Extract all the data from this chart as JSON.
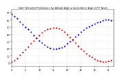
{
  "title": "Solar PV/Inverter Performance Sun Altitude Angle & Sun Incidence Angle on PV Panels",
  "background_color": "#ffffff",
  "grid_color": "#bbbbbb",
  "blue_color": "#0000dd",
  "red_color": "#cc0000",
  "ylim": [
    -5,
    75
  ],
  "xlim": [
    0,
    37
  ],
  "ytick_vals": [
    0,
    10,
    20,
    30,
    40,
    50,
    60,
    70
  ],
  "blue_x": [
    0,
    1,
    2,
    3,
    4,
    5,
    6,
    7,
    8,
    9,
    10,
    11,
    12,
    13,
    14,
    15,
    16,
    17,
    18,
    19,
    20,
    21,
    22,
    23,
    24,
    25,
    26,
    27,
    28,
    29,
    30,
    31,
    32,
    33,
    34,
    35,
    36
  ],
  "blue_y": [
    68,
    65,
    62,
    58,
    54,
    50,
    47,
    43,
    39,
    35,
    31,
    28,
    25,
    23,
    21,
    20,
    20,
    21,
    22,
    24,
    27,
    30,
    33,
    37,
    40,
    43,
    46,
    49,
    51,
    53,
    55,
    57,
    58,
    59,
    60,
    60,
    59
  ],
  "red_x": [
    0,
    1,
    2,
    3,
    4,
    5,
    6,
    7,
    8,
    9,
    10,
    11,
    12,
    13,
    14,
    15,
    16,
    17,
    18,
    19,
    20,
    21,
    22,
    23,
    24,
    25,
    26,
    27,
    28,
    29,
    30,
    31,
    32,
    33,
    34,
    35,
    36
  ],
  "red_y": [
    2,
    4,
    7,
    11,
    15,
    19,
    23,
    27,
    31,
    35,
    39,
    42,
    45,
    47,
    48,
    49,
    49,
    48,
    46,
    43,
    40,
    36,
    32,
    28,
    24,
    20,
    17,
    13,
    10,
    8,
    6,
    4,
    3,
    2,
    2,
    3,
    4
  ],
  "marker_size": 1.2,
  "title_fontsize": 2.2,
  "tick_labelsize": 2.5,
  "xtick_spacing": 5
}
